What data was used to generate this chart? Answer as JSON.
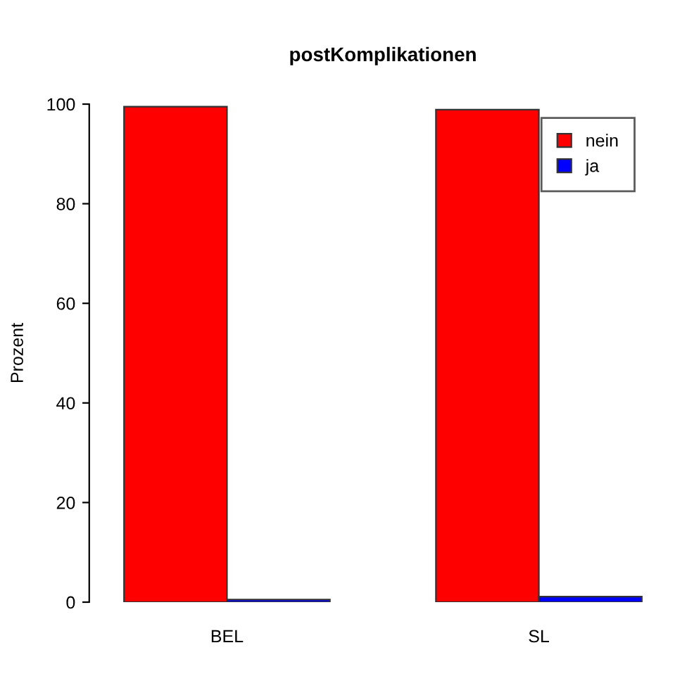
{
  "chart_data": {
    "type": "bar",
    "title": "postKomplikationen",
    "ylabel": "Prozent",
    "categories": [
      "BEL",
      "SL"
    ],
    "series": [
      {
        "name": "nein",
        "color": "#ff0000",
        "values": [
          99.5,
          98.9
        ]
      },
      {
        "name": "ja",
        "color": "#0000ff",
        "values": [
          0.5,
          1.1
        ]
      }
    ],
    "ylim": [
      0,
      100
    ],
    "yticks": [
      0,
      20,
      40,
      60,
      80,
      100
    ],
    "grid": false,
    "legend": "top right"
  }
}
